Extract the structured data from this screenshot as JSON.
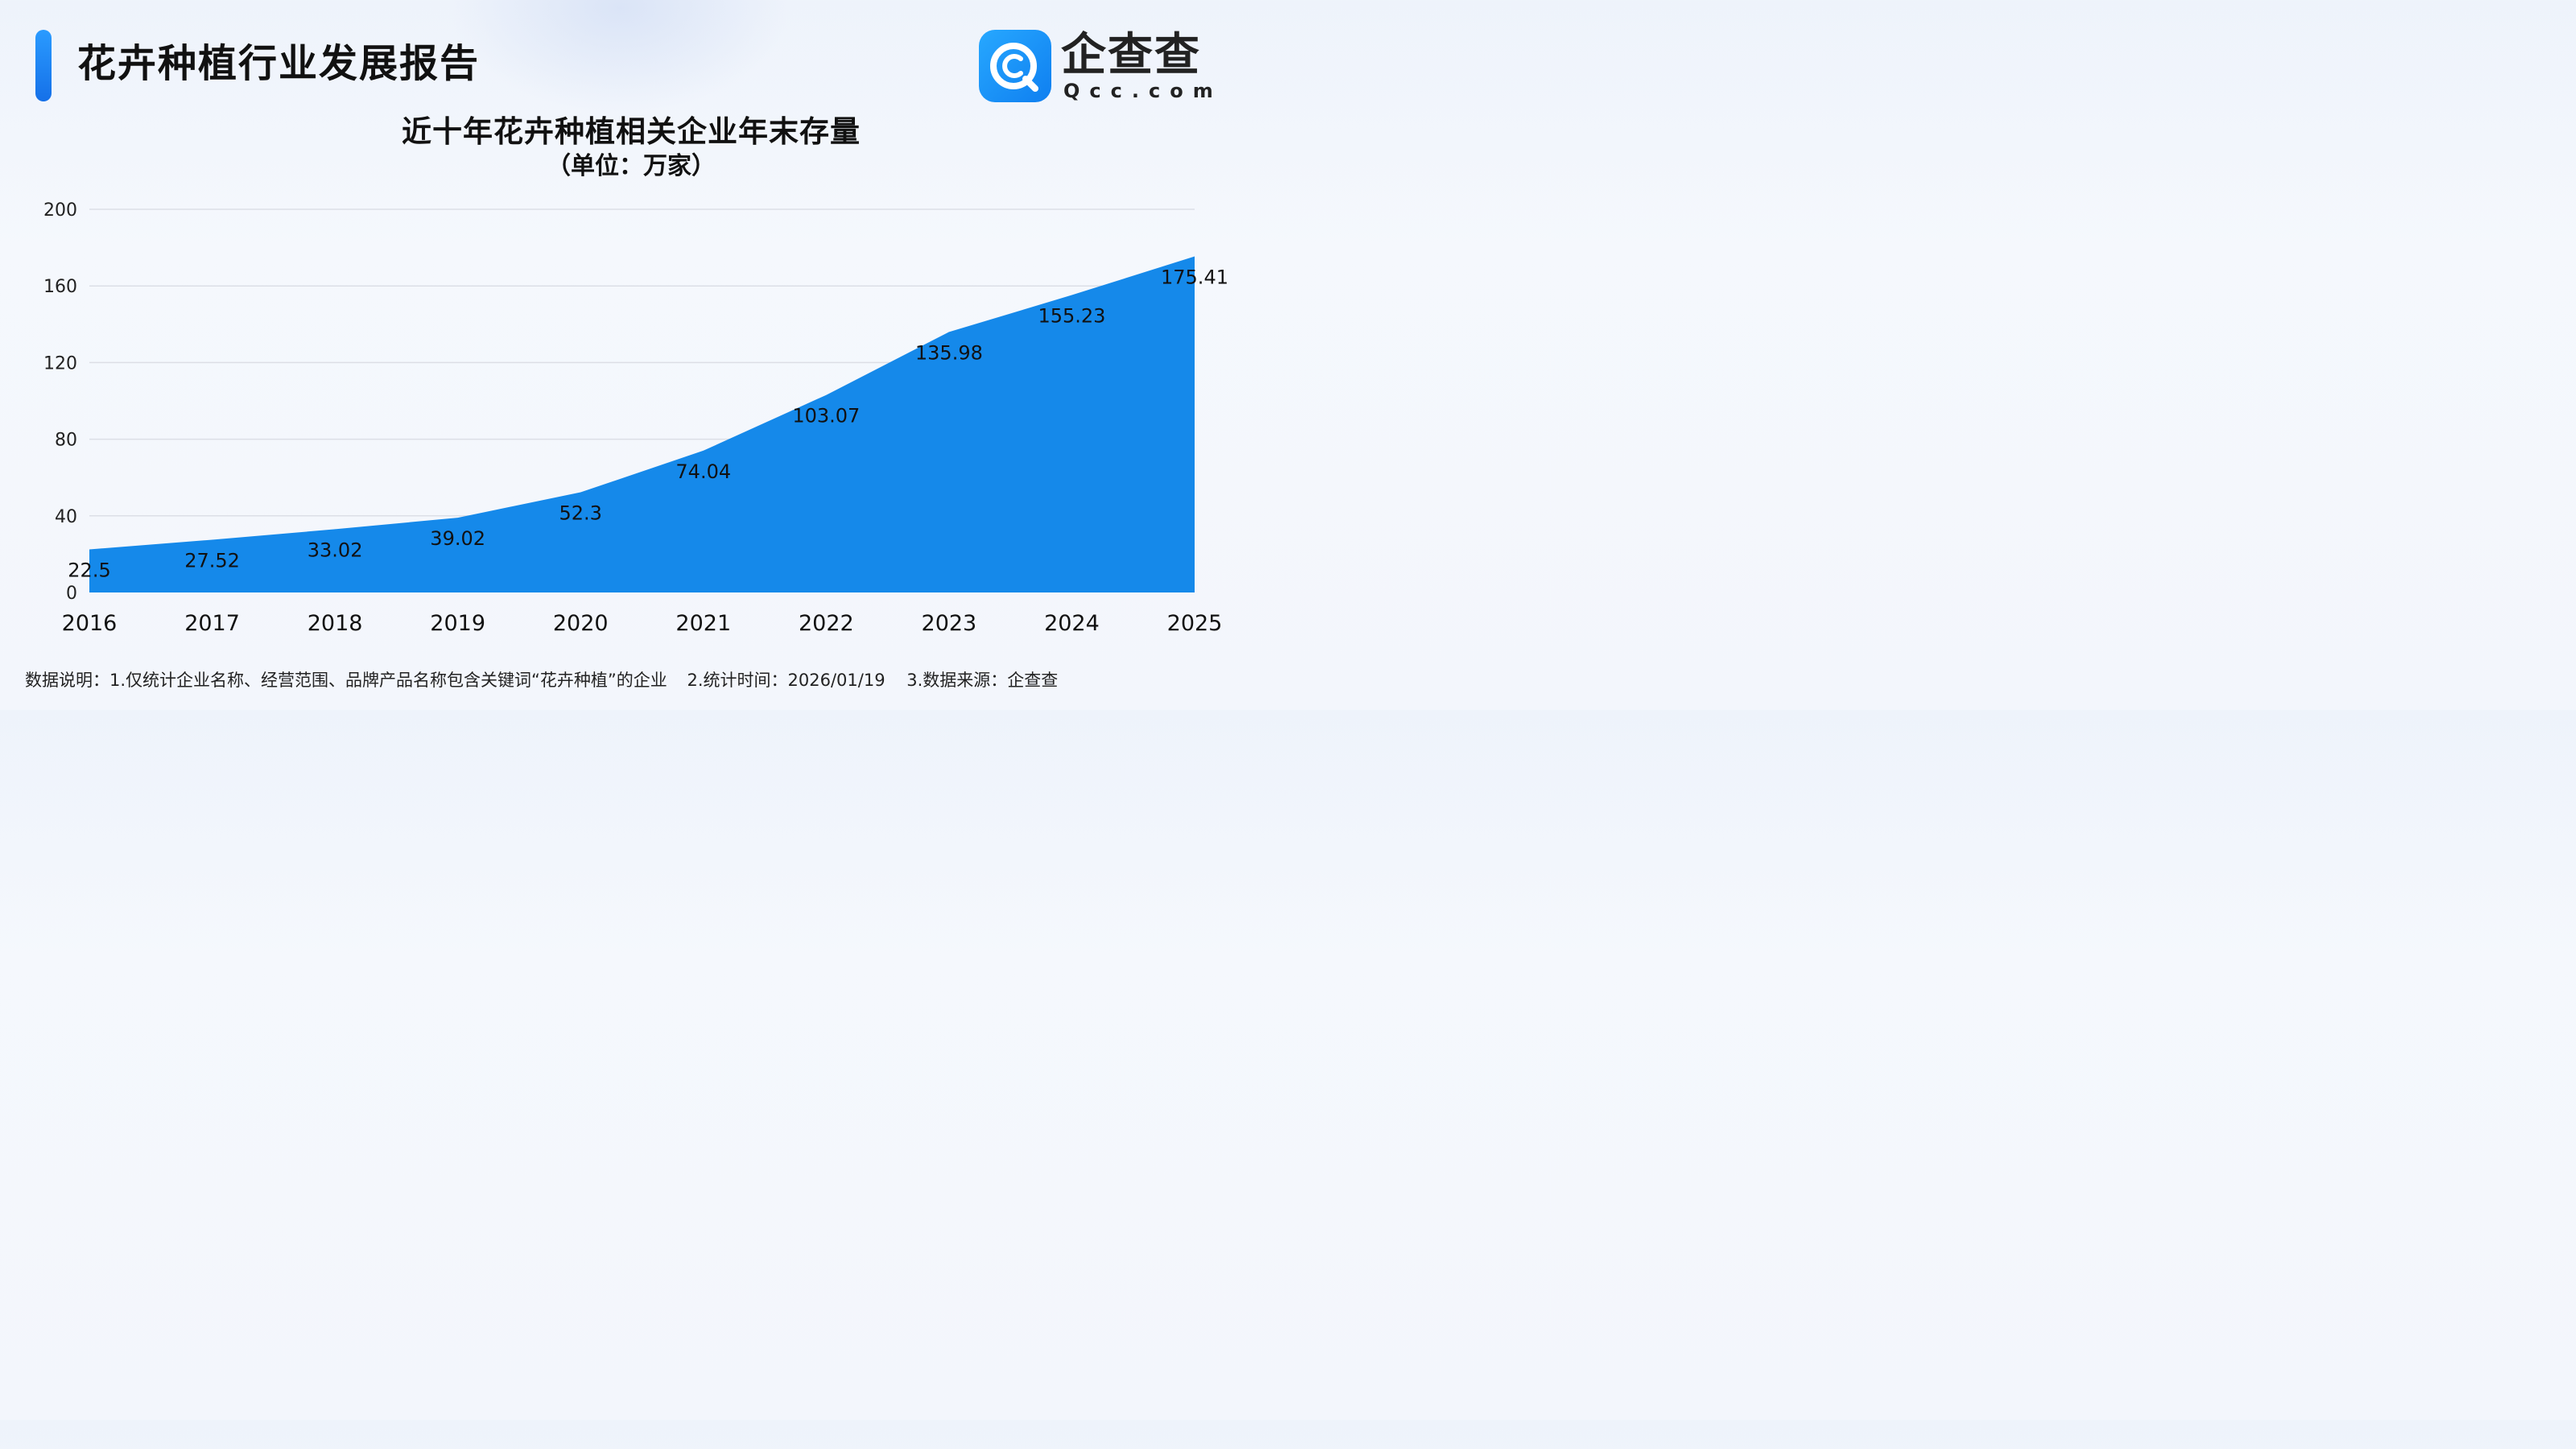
{
  "header": {
    "title": "花卉种植行业发展报告",
    "brand_name": "企查查",
    "brand_domain": "Qcc.com"
  },
  "chart_title": "近十年花卉种植相关企业年末存量",
  "chart_subtitle": "（单位：万家）",
  "footnote": {
    "note1": "数据说明：1.仅统计企业名称、经营范围、品牌产品名称包含关键词“花卉种植”的企业",
    "note2": "2.统计时间：2026/01/19",
    "note3": "3.数据来源：企查查"
  },
  "colors": {
    "area_fill": "#1589ea",
    "brand_blue": "#1a8cff",
    "grid": "#dcdfe6"
  },
  "chart_data": {
    "type": "area",
    "title": "近十年花卉种植相关企业年末存量",
    "subtitle": "（单位：万家）",
    "x": [
      "2016",
      "2017",
      "2018",
      "2019",
      "2020",
      "2021",
      "2022",
      "2023",
      "2024",
      "2025"
    ],
    "values": [
      22.5,
      27.52,
      33.02,
      39.02,
      52.3,
      74.04,
      103.07,
      135.98,
      155.23,
      175.41
    ],
    "value_labels": [
      "22.5",
      "27.52",
      "33.02",
      "39.02",
      "52.3",
      "74.04",
      "103.07",
      "135.98",
      "155.23",
      "175.41"
    ],
    "ylim": [
      0,
      200
    ],
    "yticks": [
      "0",
      "40",
      "80",
      "120",
      "160",
      "200"
    ],
    "ytick_values": [
      0,
      40,
      80,
      120,
      160,
      200
    ],
    "grid": true,
    "legend": "none"
  }
}
